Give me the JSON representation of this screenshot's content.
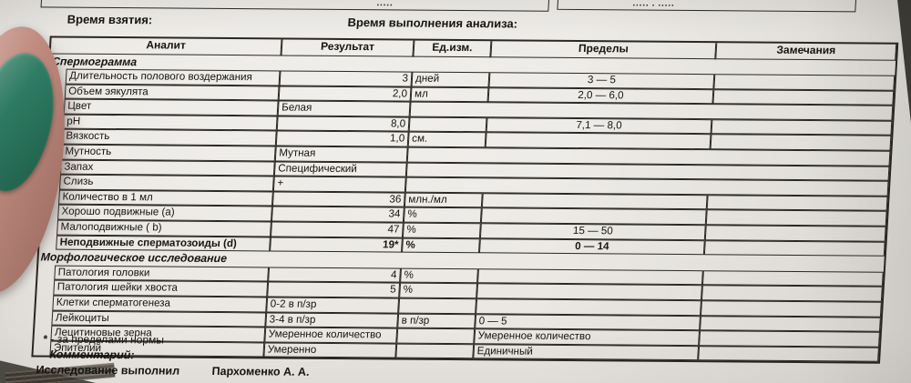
{
  "colors": {
    "background": "#45443d",
    "paper": "#e9e6e1",
    "line": "#2a2722",
    "ink": "#17140f",
    "nail": "#2f8066",
    "skin": "#c69084"
  },
  "top_strip": {
    "left_fragment": "▪▪▪▪▪",
    "right_fragment": "▪▪▪▪▪ ▪ ▪▪▪▪▪"
  },
  "header": {
    "collection_time_label": "Время взятия:",
    "analysis_time_label": "Время выполнения анализа:"
  },
  "table": {
    "columns": [
      "Аналит",
      "Результат",
      "Ед.изм.",
      "Пределы",
      "Замечания"
    ],
    "rows": [
      {
        "type": "section",
        "label": "Спермограмма"
      },
      {
        "type": "data",
        "label": "Длительность полового воздержания",
        "result": "3",
        "result_align": "r",
        "unit": "дней",
        "limits": "3 — 5",
        "limits_align": "c",
        "remarks": ""
      },
      {
        "type": "data",
        "label": "Объем эякулята",
        "result": "2,0",
        "result_align": "r",
        "unit": "мл",
        "limits": "2,0 — 6,0",
        "limits_align": "c",
        "remarks": ""
      },
      {
        "type": "data",
        "label": "Цвет",
        "result": "Белая",
        "result_align": "l",
        "merged": true
      },
      {
        "type": "data",
        "label": "pH",
        "result": "8,0",
        "result_align": "r",
        "unit": "",
        "limits": "7,1 — 8,0",
        "limits_align": "c",
        "remarks": ""
      },
      {
        "type": "data",
        "label": "Вязкость",
        "result": "1,0",
        "result_align": "r",
        "unit": "см.",
        "limits": "",
        "limits_align": "c",
        "remarks": ""
      },
      {
        "type": "data",
        "label": "Мутность",
        "result": "Мутная",
        "result_align": "l",
        "merged": true
      },
      {
        "type": "data",
        "label": "Запах",
        "result": "Специфический",
        "result_align": "l",
        "merged": true
      },
      {
        "type": "data",
        "label": "Слизь",
        "result": "+",
        "result_align": "l",
        "merged": true
      },
      {
        "type": "data",
        "label": "Количество в 1 мл",
        "result": "36",
        "result_align": "r",
        "unit": "млн./мл",
        "limits": "",
        "limits_align": "c",
        "remarks": ""
      },
      {
        "type": "data",
        "label": "Хорошо подвижные (a)",
        "result": "34",
        "result_align": "r",
        "unit": "%",
        "limits": "",
        "limits_align": "c",
        "remarks": ""
      },
      {
        "type": "data",
        "label": "Малоподвижные ( b)",
        "result": "47",
        "result_align": "r",
        "unit": "%",
        "limits": "15 — 50",
        "limits_align": "c",
        "remarks": ""
      },
      {
        "type": "data",
        "label": "Неподвижные сперматозоиды (d)",
        "result": "19*",
        "result_align": "r",
        "unit": "%",
        "limits": "0 — 14",
        "limits_align": "c",
        "remarks": "",
        "bold": true
      },
      {
        "type": "section",
        "label": "Морфологическое исследование"
      },
      {
        "type": "data",
        "label": "Патология головки",
        "result": "4",
        "result_align": "r",
        "unit": "%",
        "limits": "",
        "limits_align": "c",
        "remarks": ""
      },
      {
        "type": "data",
        "label": "Патология шейки хвоста",
        "result": "5",
        "result_align": "r",
        "unit": "%",
        "limits": "",
        "limits_align": "c",
        "remarks": ""
      },
      {
        "type": "data",
        "label": "Клетки сперматогенеза",
        "result": "0-2 в п/зр",
        "result_align": "l",
        "unit": "",
        "limits": "",
        "limits_align": "l",
        "remarks": ""
      },
      {
        "type": "data",
        "label": "Лейкоциты",
        "result": "3-4 в п/зр",
        "result_align": "l",
        "unit": "в п/зр",
        "limits": "0 — 5",
        "limits_align": "l",
        "remarks": ""
      },
      {
        "type": "data",
        "label": "Лецитиновые зерна",
        "result": "Умеренное количество",
        "result_align": "l",
        "unit": "",
        "limits": "Умеренное количество",
        "limits_align": "l",
        "remarks": ""
      },
      {
        "type": "data",
        "label": "Эпителий",
        "result": "Умеренно",
        "result_align": "l",
        "unit": "",
        "limits": "Единичный",
        "limits_align": "l",
        "remarks": ""
      }
    ]
  },
  "footnotes": {
    "out_of_norm_star": "*",
    "out_of_norm": " - за пределами нормы",
    "comment_label": "Комментарий:",
    "performed_by_label": "Исследование выполнил",
    "performed_by_name": "Пархоменко А. А."
  }
}
